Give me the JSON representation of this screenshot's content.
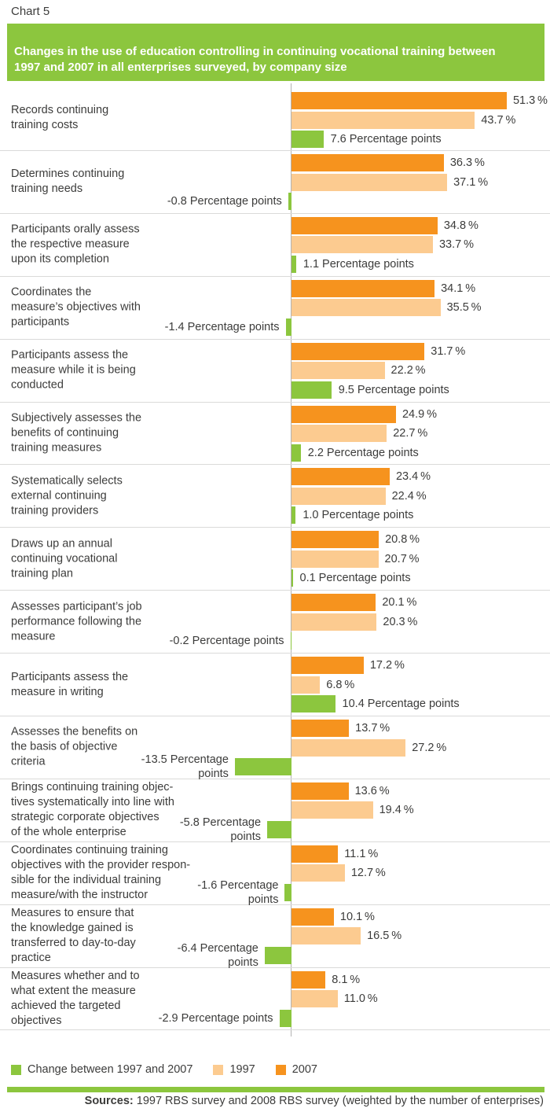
{
  "header": {
    "chart_label": "Chart 5",
    "title": "Changes in the use of education controlling in continuing vocational training between\n1997 and 2007 in all enterprises surveyed, by company size"
  },
  "legend": {
    "items": [
      {
        "label": "Change between 1997 and 2007",
        "color": "#8CC63E"
      },
      {
        "label": "1997",
        "color": "#FCCB90"
      },
      {
        "label": "2007",
        "color": "#F6931E"
      }
    ]
  },
  "source": {
    "prefix": "Sources:",
    "text": "1997 RBS survey and 2008 RBS survey (weighted by the number of enterprises)"
  },
  "colors": {
    "accent_green": "#8CC63E",
    "orange_2007": "#F6931E",
    "peach_1997": "#FCCB90",
    "axis_line": "#B3B3B2",
    "row_divider": "#DADAD9",
    "text": "#3C3C3B",
    "banner_text": "#FFFFFF"
  },
  "chart_data": {
    "type": "bar",
    "orientation": "horizontal",
    "title": "Changes in the use of education controlling in continuing vocational training between 1997 and 2007 in all enterprises surveyed, by company size",
    "unit": "percent",
    "xlabel": "",
    "ylabel": "",
    "x_axis": {
      "min": -15,
      "max": 60,
      "gridlines": false,
      "tick_labels_visible": false
    },
    "legend_position": "bottom",
    "categories": [
      "Records continuing\ntraining costs",
      "Determines continuing\ntraining needs",
      "Participants orally assess\nthe respective measure\nupon its completion",
      "Coordinates the\nmeasure’s objectives with\nparticipants",
      "Participants assess the\nmeasure while it is being\nconducted",
      "Subjectively assesses the\nbenefits of continuing\ntraining measures",
      "Systematically selects\nexternal continuing\ntraining providers",
      "Draws up an annual\ncontinuing vocational\ntraining plan",
      "Assesses participant’s job\nperformance following the\nmeasure",
      "Participants assess the\nmeasure in writing",
      "Assesses the benefits on\nthe basis of objective\ncriteria",
      "Brings continuing training objec-\ntives systematically into line with\nstrategic corporate objectives\nof the whole enterprise",
      "Coordinates continuing training\nobjectives with the provider respon-\nsible for the individual training\nmeasure/with the instructor",
      "Measures to ensure that\nthe knowledge gained is\ntransferred to day-to-day\npractice",
      "Measures whether and to\nwhat extent the measure\nachieved the targeted\nobjectives"
    ],
    "series": [
      {
        "name": "2007",
        "color": "#F6931E",
        "values": [
          51.3,
          36.3,
          34.8,
          34.1,
          31.7,
          24.9,
          23.4,
          20.8,
          20.1,
          17.2,
          13.7,
          13.6,
          11.1,
          10.1,
          8.1
        ]
      },
      {
        "name": "1997",
        "color": "#FCCB90",
        "values": [
          43.7,
          37.1,
          33.7,
          35.5,
          22.2,
          22.7,
          22.4,
          20.7,
          20.3,
          6.8,
          27.2,
          19.4,
          12.7,
          16.5,
          11.0
        ]
      },
      {
        "name": "Change between 1997 and 2007",
        "color": "#8CC63E",
        "values": [
          7.6,
          -0.8,
          1.1,
          -1.4,
          9.5,
          2.2,
          1.0,
          0.1,
          -0.2,
          10.4,
          -13.5,
          -5.8,
          -1.6,
          -6.4,
          -2.9
        ]
      }
    ],
    "rows": [
      {
        "category": "Records continuing\ntraining costs",
        "pct_2007": 51.3,
        "pct_1997": 43.7,
        "change": 7.6,
        "label_2007": "51.3 %",
        "label_1997": "43.7 %",
        "change_label": "7.6 Percentage points"
      },
      {
        "category": "Determines continuing\ntraining needs",
        "pct_2007": 36.3,
        "pct_1997": 37.1,
        "change": -0.8,
        "label_2007": "36.3 %",
        "label_1997": "37.1 %",
        "change_label": "-0.8 Percentage points"
      },
      {
        "category": "Participants orally assess\nthe respective measure\nupon its completion",
        "pct_2007": 34.8,
        "pct_1997": 33.7,
        "change": 1.1,
        "label_2007": "34.8 %",
        "label_1997": "33.7 %",
        "change_label": "1.1 Percentage points"
      },
      {
        "category": "Coordinates the\nmeasure’s objectives with\nparticipants",
        "pct_2007": 34.1,
        "pct_1997": 35.5,
        "change": -1.4,
        "label_2007": "34.1 %",
        "label_1997": "35.5 %",
        "change_label": "-1.4 Percentage points"
      },
      {
        "category": "Participants assess the\nmeasure while it is being\nconducted",
        "pct_2007": 31.7,
        "pct_1997": 22.2,
        "change": 9.5,
        "label_2007": "31.7 %",
        "label_1997": "22.2 %",
        "change_label": "9.5 Percentage points"
      },
      {
        "category": "Subjectively assesses the\nbenefits of continuing\ntraining measures",
        "pct_2007": 24.9,
        "pct_1997": 22.7,
        "change": 2.2,
        "label_2007": "24.9 %",
        "label_1997": "22.7 %",
        "change_label": "2.2 Percentage points"
      },
      {
        "category": "Systematically selects\nexternal continuing\ntraining providers",
        "pct_2007": 23.4,
        "pct_1997": 22.4,
        "change": 1.0,
        "label_2007": "23.4 %",
        "label_1997": "22.4 %",
        "change_label": "1.0 Percentage points"
      },
      {
        "category": "Draws up an annual\ncontinuing vocational\ntraining plan",
        "pct_2007": 20.8,
        "pct_1997": 20.7,
        "change": 0.1,
        "label_2007": "20.8 %",
        "label_1997": "20.7 %",
        "change_label": "0.1 Percentage points"
      },
      {
        "category": "Assesses participant’s job\nperformance following the\nmeasure",
        "pct_2007": 20.1,
        "pct_1997": 20.3,
        "change": -0.2,
        "label_2007": "20.1 %",
        "label_1997": "20.3 %",
        "change_label": "-0.2 Percentage points"
      },
      {
        "category": "Participants assess the\nmeasure in writing",
        "pct_2007": 17.2,
        "pct_1997": 6.8,
        "change": 10.4,
        "label_2007": "17.2 %",
        "label_1997": "6.8 %",
        "change_label": "10.4 Percentage points"
      },
      {
        "category": "Assesses the benefits on\nthe basis of objective\ncriteria",
        "pct_2007": 13.7,
        "pct_1997": 27.2,
        "change": -13.5,
        "label_2007": "13.7 %",
        "label_1997": "27.2 %",
        "change_label": "-13.5 Percentage\npoints"
      },
      {
        "category": "Brings continuing training objec-\ntives systematically into line with\nstrategic corporate objectives\nof the whole enterprise",
        "pct_2007": 13.6,
        "pct_1997": 19.4,
        "change": -5.8,
        "label_2007": "13.6 %",
        "label_1997": "19.4 %",
        "change_label": "-5.8 Percentage\npoints"
      },
      {
        "category": "Coordinates continuing training\nobjectives with the provider respon-\nsible for the individual training\nmeasure/with the instructor",
        "pct_2007": 11.1,
        "pct_1997": 12.7,
        "change": -1.6,
        "label_2007": "11.1 %",
        "label_1997": "12.7 %",
        "change_label": "-1.6 Percentage\npoints"
      },
      {
        "category": "Measures to ensure that\nthe knowledge gained is\ntransferred to day-to-day\npractice",
        "pct_2007": 10.1,
        "pct_1997": 16.5,
        "change": -6.4,
        "label_2007": "10.1 %",
        "label_1997": "16.5 %",
        "change_label": "-6.4 Percentage\npoints"
      },
      {
        "category": "Measures whether and to\nwhat extent the measure\nachieved the targeted\nobjectives",
        "pct_2007": 8.1,
        "pct_1997": 11.0,
        "change": -2.9,
        "label_2007": "8.1 %",
        "label_1997": "11.0 %",
        "change_label": "-2.9 Percentage points"
      }
    ]
  }
}
